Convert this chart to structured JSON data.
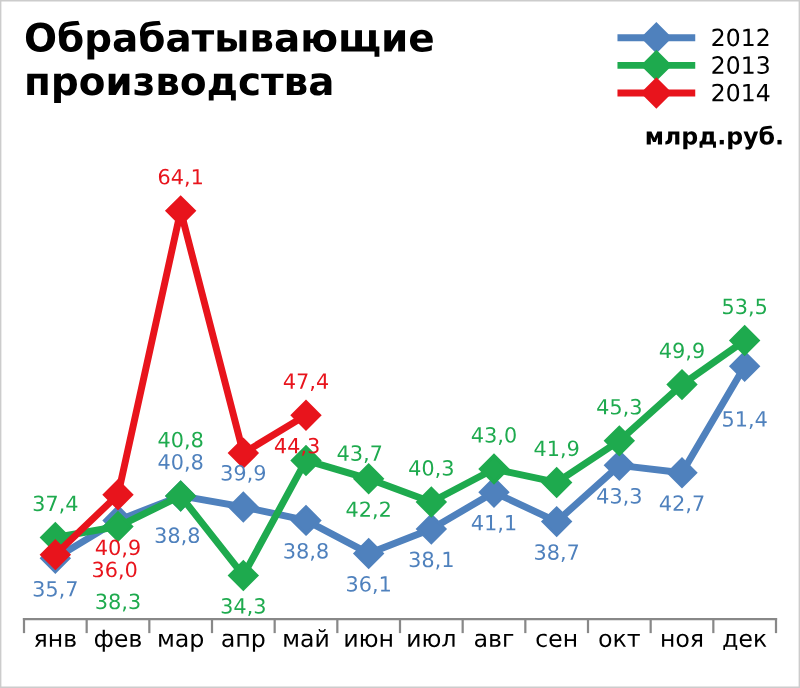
{
  "chart_data": {
    "type": "line",
    "title": "Обрабатывающие\nпроизводства",
    "annotations": [
      "млрд.руб."
    ],
    "categories": [
      "янв",
      "фев",
      "мар",
      "апр",
      "май",
      "июн",
      "июл",
      "авг",
      "сен",
      "окт",
      "ноя",
      "дек"
    ],
    "series": [
      {
        "name": "2012",
        "color": "#4f81bd",
        "values": [
          35.7,
          38.8,
          40.8,
          39.9,
          38.8,
          36.1,
          38.1,
          41.1,
          38.7,
          43.3,
          42.7,
          51.4
        ],
        "value_labels": [
          "35,7",
          "38,8",
          "40,8",
          "39,9",
          "38,8",
          "36,1",
          "38,1",
          "41,1",
          "38,7",
          "43,3",
          "42,7",
          "51,4"
        ]
      },
      {
        "name": "2013",
        "color": "#1eaa4e",
        "values": [
          37.4,
          38.3,
          40.8,
          34.3,
          43.7,
          42.2,
          40.3,
          43.0,
          41.9,
          45.3,
          49.9,
          53.5
        ],
        "value_labels": [
          "37,4",
          "38,3",
          "40,8",
          "34,3",
          "43,7",
          "42,2",
          "40,3",
          "43,0",
          "41,9",
          "45,3",
          "49,9",
          "53,5"
        ]
      },
      {
        "name": "2014",
        "color": "#e8141c",
        "values": [
          36.0,
          40.9,
          64.1,
          44.3,
          47.4,
          null,
          null,
          null,
          null,
          null,
          null,
          null
        ],
        "value_labels": [
          "36,0",
          "40,9",
          "64,1",
          "44,3",
          "47,4",
          null,
          null,
          null,
          null,
          null,
          null,
          null
        ]
      }
    ],
    "marker": "diamond",
    "legend": "top right",
    "tick_labels": "x",
    "grid": false
  }
}
